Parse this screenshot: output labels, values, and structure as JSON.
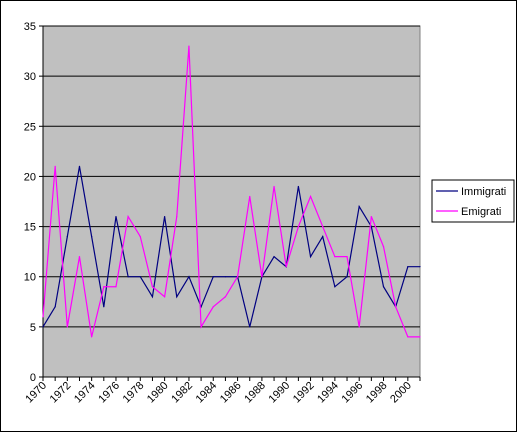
{
  "chart_data": {
    "type": "line",
    "title": "",
    "xlabel": "",
    "ylabel": "",
    "x": [
      1970,
      1971,
      1972,
      1973,
      1974,
      1975,
      1976,
      1977,
      1978,
      1979,
      1980,
      1981,
      1982,
      1983,
      1984,
      1985,
      1986,
      1987,
      1988,
      1989,
      1990,
      1991,
      1992,
      1993,
      1994,
      1995,
      1996,
      1997,
      1998,
      1999,
      2000,
      2001
    ],
    "ylim": [
      0,
      35
    ],
    "yticks": [
      0,
      5,
      10,
      15,
      20,
      25,
      30,
      35
    ],
    "xticks": [
      1970,
      1972,
      1974,
      1976,
      1978,
      1980,
      1982,
      1984,
      1986,
      1988,
      1990,
      1992,
      1994,
      1996,
      1998,
      2000
    ],
    "xtick_labels": [
      "1970",
      "1972",
      "1974",
      "1976",
      "1978",
      "1980",
      "1982",
      "1984",
      "1986",
      "1988",
      "1990",
      "1992",
      "1994",
      "1996",
      "1998",
      "2000"
    ],
    "grid": true,
    "plot_background": "#c0c0c0",
    "legend_position": "right",
    "series": [
      {
        "name": "Immigrati",
        "color": "#000080",
        "values": [
          5,
          7,
          14,
          21,
          14,
          7,
          16,
          10,
          10,
          8,
          16,
          8,
          10,
          7,
          10,
          10,
          10,
          5,
          10,
          12,
          11,
          19,
          12,
          14,
          9,
          10,
          17,
          15,
          9,
          7,
          11,
          11
        ]
      },
      {
        "name": "Emigrati",
        "color": "#ff00ff",
        "values": [
          6,
          21,
          5,
          12,
          4,
          9,
          9,
          16,
          14,
          9,
          8,
          16,
          33,
          5,
          7,
          8,
          10,
          18,
          10,
          19,
          11,
          15,
          18,
          15,
          12,
          12,
          5,
          16,
          13,
          7,
          4,
          4
        ]
      }
    ]
  }
}
